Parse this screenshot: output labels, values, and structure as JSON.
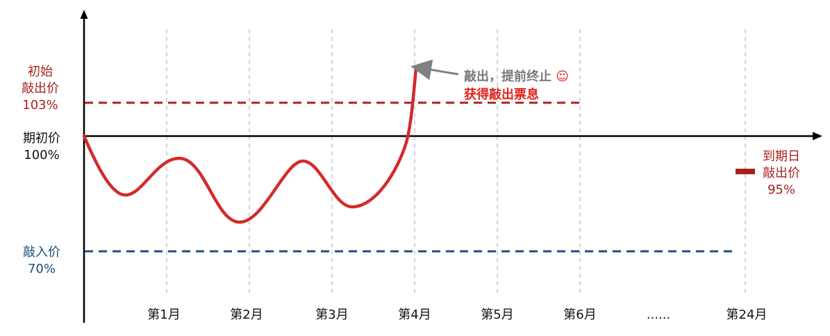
{
  "labels": {
    "initial_knockout": [
      "初始",
      "敲出价",
      "103%"
    ],
    "start_price": [
      "期初价",
      "100%"
    ],
    "knock_in": [
      "敲入价",
      "70%"
    ],
    "maturity_knockout": [
      "到期日",
      "敲出价",
      "95%"
    ]
  },
  "annotation": {
    "line1": "敲出，提前终止",
    "smile": "☺",
    "line2": "获得敲出票息"
  },
  "months": [
    "第1月",
    "第2月",
    "第3月",
    "第4月",
    "第5月",
    "第6月",
    "......",
    "第24月"
  ],
  "colors": {
    "knockout_line": "#a92020",
    "knockin_line": "#1d4e7e",
    "price_path": "#d42a2a",
    "grid": "#b8bcc8",
    "axis": "#000000",
    "arrow": "#808080"
  }
}
